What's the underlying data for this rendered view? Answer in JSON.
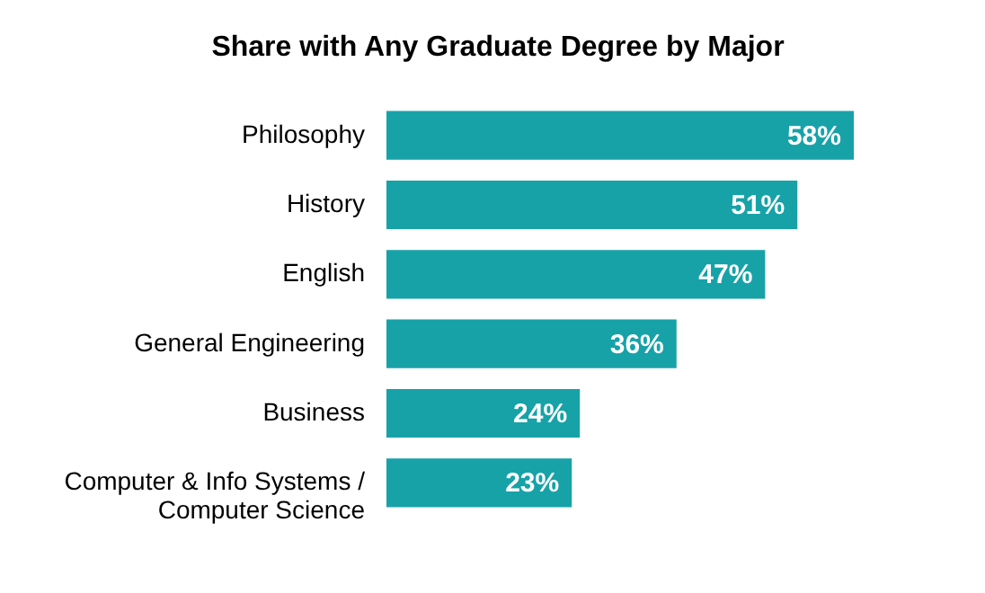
{
  "chart_data": {
    "type": "bar",
    "orientation": "horizontal",
    "title": "Share with Any Graduate Degree by Major",
    "categories": [
      "Philosophy",
      "History",
      "English",
      "General Engineering",
      "Business",
      "Computer & Info Systems / Computer Science"
    ],
    "values": [
      58,
      51,
      47,
      36,
      24,
      23
    ],
    "value_labels": [
      "58%",
      "51%",
      "47%",
      "36%",
      "24%",
      "23%"
    ],
    "color": "#17a2a8"
  }
}
